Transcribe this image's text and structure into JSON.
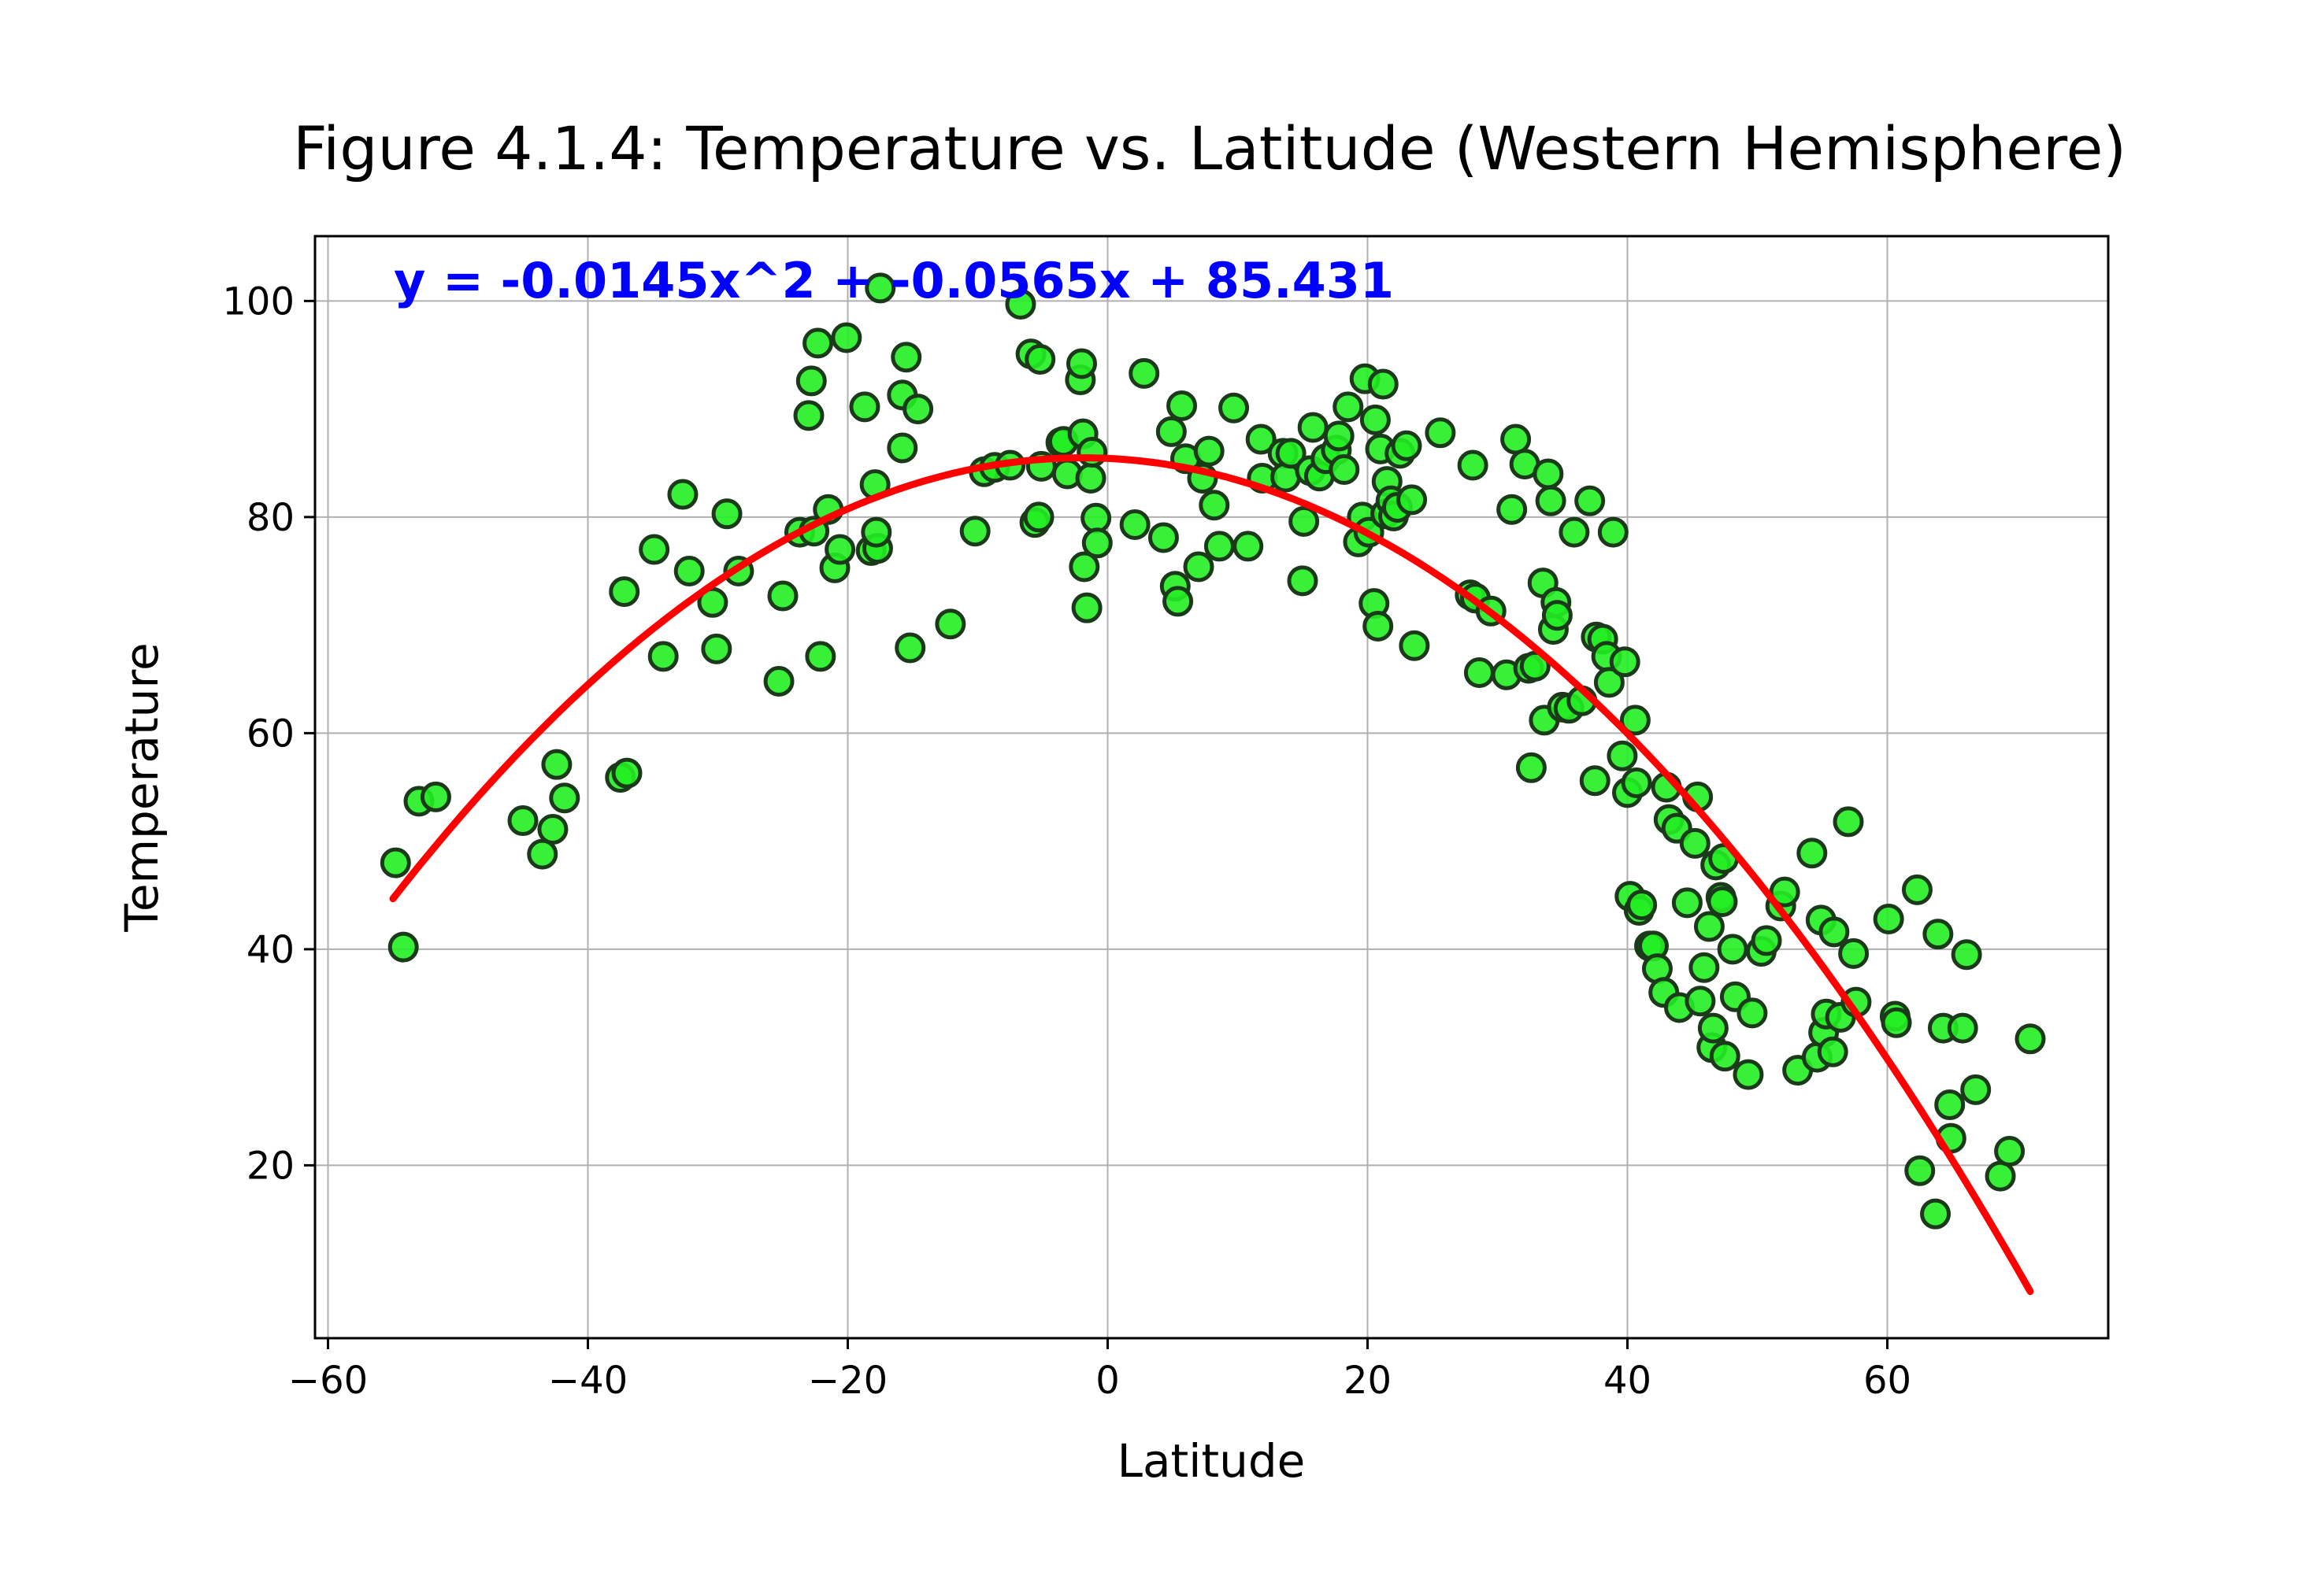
{
  "chart_data": {
    "type": "scatter",
    "title": "Figure 4.1.4: Temperature vs. Latitude (Western Hemisphere)",
    "xlabel": "Latitude",
    "ylabel": "Temperature",
    "xlim": [
      -61,
      77
    ],
    "ylim": [
      4,
      106
    ],
    "xticks": [
      -60,
      -40,
      -20,
      0,
      20,
      40,
      60
    ],
    "yticks": [
      20,
      40,
      60,
      80,
      100
    ],
    "grid": true,
    "marker_fill": "#22ee22",
    "marker_edge": "#1a3a1a",
    "fit_color": "#ff0000",
    "equation_color": "#0000ff",
    "annotation": "y = -0.0145x^2 + -0.0565x + 85.431",
    "fit": {
      "a": -0.0145,
      "b": -0.0565,
      "c": 85.431,
      "x_range": [
        -55,
        71
      ]
    },
    "points": [
      [
        -54.8,
        48
      ],
      [
        -54.2,
        40.2
      ],
      [
        -53.0,
        53.7
      ],
      [
        -51.7,
        54.1
      ],
      [
        -45.0,
        51.9
      ],
      [
        -43.5,
        48.8
      ],
      [
        -42.7,
        51.1
      ],
      [
        -42.4,
        57.1
      ],
      [
        -41.8,
        54
      ],
      [
        -37.5,
        55.9
      ],
      [
        -37.0,
        56.3
      ],
      [
        -37.2,
        73.1
      ],
      [
        -34.9,
        77
      ],
      [
        -34.2,
        67.1
      ],
      [
        -32.7,
        82.1
      ],
      [
        -32.2,
        75
      ],
      [
        -30.4,
        72.1
      ],
      [
        -30.1,
        67.8
      ],
      [
        -29.3,
        80.3
      ],
      [
        -28.4,
        75
      ],
      [
        -25.3,
        64.8
      ],
      [
        -25.0,
        72.7
      ],
      [
        -23.7,
        78.6
      ],
      [
        -23.0,
        89.4
      ],
      [
        -22.8,
        92.6
      ],
      [
        -22.6,
        78.7
      ],
      [
        -22.3,
        96.1
      ],
      [
        -22.1,
        67.1
      ],
      [
        -21.5,
        80.7
      ],
      [
        -21.0,
        75.3
      ],
      [
        -20.6,
        77
      ],
      [
        -20.1,
        96.6
      ],
      [
        -18.7,
        90.2
      ],
      [
        -18.2,
        76.9
      ],
      [
        -17.9,
        83
      ],
      [
        -17.7,
        77.1
      ],
      [
        -17.8,
        78.6
      ],
      [
        -17.5,
        101.2
      ],
      [
        -15.8,
        86.4
      ],
      [
        -15.8,
        91.3
      ],
      [
        -15.5,
        94.8
      ],
      [
        -15.2,
        67.9
      ],
      [
        -14.6,
        90
      ],
      [
        -12.1,
        70.1
      ],
      [
        -10.2,
        78.7
      ],
      [
        -9.5,
        84.2
      ],
      [
        -8.7,
        84.6
      ],
      [
        -7.5,
        84.8
      ],
      [
        -6.7,
        99.7
      ],
      [
        -5.9,
        95.1
      ],
      [
        -5.6,
        79.5
      ],
      [
        -5.3,
        80
      ],
      [
        -5.2,
        94.6
      ],
      [
        -5.1,
        84.7
      ],
      [
        -3.6,
        86.9
      ],
      [
        -3.4,
        87
      ],
      [
        -3.1,
        84
      ],
      [
        -2.1,
        92.7
      ],
      [
        -1.9,
        87.7
      ],
      [
        -2.0,
        94.2
      ],
      [
        -1.8,
        75.4
      ],
      [
        -1.6,
        71.6
      ],
      [
        -1.3,
        83.6
      ],
      [
        -1.2,
        86
      ],
      [
        -0.9,
        79.9
      ],
      [
        -0.8,
        77.6
      ],
      [
        2.1,
        79.3
      ],
      [
        2.8,
        93.3
      ],
      [
        4.3,
        78.1
      ],
      [
        4.9,
        87.9
      ],
      [
        5.2,
        73.6
      ],
      [
        5.4,
        72.2
      ],
      [
        5.7,
        90.3
      ],
      [
        6.0,
        85.4
      ],
      [
        7.0,
        75.4
      ],
      [
        7.3,
        83.6
      ],
      [
        7.8,
        86.1
      ],
      [
        8.2,
        81.1
      ],
      [
        8.6,
        77.3
      ],
      [
        9.7,
        90.1
      ],
      [
        10.8,
        77.3
      ],
      [
        11.8,
        87.2
      ],
      [
        11.9,
        83.6
      ],
      [
        13.5,
        85.9
      ],
      [
        13.7,
        83.7
      ],
      [
        14.1,
        85.9
      ],
      [
        15.0,
        74.1
      ],
      [
        15.1,
        79.6
      ],
      [
        15.6,
        84.3
      ],
      [
        15.8,
        88.3
      ],
      [
        16.3,
        83.8
      ],
      [
        16.8,
        85.4
      ],
      [
        17.6,
        86.2
      ],
      [
        17.8,
        87.5
      ],
      [
        18.2,
        84.4
      ],
      [
        18.5,
        90.2
      ],
      [
        19.3,
        77.7
      ],
      [
        19.6,
        80
      ],
      [
        19.8,
        92.8
      ],
      [
        20.1,
        78.6
      ],
      [
        20.5,
        72
      ],
      [
        20.8,
        69.9
      ],
      [
        20.6,
        89
      ],
      [
        21.0,
        86.3
      ],
      [
        21.2,
        92.3
      ],
      [
        21.4,
        80.3
      ],
      [
        21.5,
        83.3
      ],
      [
        21.8,
        81.5
      ],
      [
        22.0,
        80.1
      ],
      [
        22.3,
        80.9
      ],
      [
        22.5,
        85.9
      ],
      [
        23.0,
        86.6
      ],
      [
        23.4,
        81.6
      ],
      [
        23.6,
        68.1
      ],
      [
        25.6,
        87.8
      ],
      [
        27.9,
        72.8
      ],
      [
        28.1,
        84.8
      ],
      [
        28.3,
        72.5
      ],
      [
        28.6,
        65.6
      ],
      [
        29.5,
        71.3
      ],
      [
        30.7,
        65.4
      ],
      [
        31.1,
        80.7
      ],
      [
        31.4,
        87.2
      ],
      [
        32.1,
        84.9
      ],
      [
        32.4,
        66
      ],
      [
        32.6,
        56.8
      ],
      [
        32.9,
        66.2
      ],
      [
        33.5,
        73.9
      ],
      [
        33.6,
        61.2
      ],
      [
        33.9,
        84
      ],
      [
        34.1,
        81.5
      ],
      [
        34.3,
        69.6
      ],
      [
        34.5,
        72.1
      ],
      [
        34.6,
        70.9
      ],
      [
        35.0,
        62.4
      ],
      [
        35.5,
        62.3
      ],
      [
        35.9,
        78.6
      ],
      [
        36.5,
        63
      ],
      [
        37.1,
        81.5
      ],
      [
        37.5,
        55.6
      ],
      [
        37.6,
        68.9
      ],
      [
        38.1,
        68.7
      ],
      [
        38.4,
        67.1
      ],
      [
        38.6,
        64.7
      ],
      [
        38.9,
        78.6
      ],
      [
        39.6,
        57.9
      ],
      [
        39.8,
        66.6
      ],
      [
        40.0,
        54.5
      ],
      [
        40.2,
        44.9
      ],
      [
        40.6,
        61.2
      ],
      [
        40.7,
        55.4
      ],
      [
        40.9,
        43.6
      ],
      [
        41.1,
        44.1
      ],
      [
        41.7,
        40.3
      ],
      [
        42.0,
        40.3
      ],
      [
        42.3,
        38.2
      ],
      [
        42.8,
        36
      ],
      [
        43.0,
        55
      ],
      [
        43.2,
        52
      ],
      [
        43.8,
        51.2
      ],
      [
        44.0,
        34.6
      ],
      [
        44.6,
        44.3
      ],
      [
        45.2,
        49.8
      ],
      [
        45.4,
        54.1
      ],
      [
        45.6,
        35.2
      ],
      [
        45.9,
        38.3
      ],
      [
        46.3,
        42.1
      ],
      [
        46.5,
        30.9
      ],
      [
        46.6,
        32.7
      ],
      [
        46.8,
        47.8
      ],
      [
        47.2,
        44.8
      ],
      [
        47.3,
        44.4
      ],
      [
        47.4,
        48.4
      ],
      [
        47.5,
        30.1
      ],
      [
        48.1,
        40
      ],
      [
        48.3,
        35.6
      ],
      [
        49.3,
        28.4
      ],
      [
        49.6,
        34.1
      ],
      [
        50.3,
        39.8
      ],
      [
        50.7,
        40.8
      ],
      [
        51.8,
        44
      ],
      [
        52.1,
        45.3
      ],
      [
        53.1,
        28.8
      ],
      [
        54.2,
        48.9
      ],
      [
        54.6,
        30
      ],
      [
        54.9,
        42.7
      ],
      [
        55.1,
        32.3
      ],
      [
        55.3,
        34
      ],
      [
        55.8,
        30.5
      ],
      [
        55.9,
        41.6
      ],
      [
        56.4,
        33.7
      ],
      [
        57.0,
        51.8
      ],
      [
        57.4,
        39.6
      ],
      [
        57.6,
        35.1
      ],
      [
        60.1,
        42.8
      ],
      [
        60.6,
        33.8
      ],
      [
        60.7,
        33.2
      ],
      [
        62.3,
        45.5
      ],
      [
        62.5,
        19.5
      ],
      [
        63.7,
        15.5
      ],
      [
        63.9,
        41.4
      ],
      [
        64.3,
        32.7
      ],
      [
        64.8,
        25.6
      ],
      [
        64.9,
        22.5
      ],
      [
        65.8,
        32.7
      ],
      [
        66.1,
        39.5
      ],
      [
        66.8,
        27
      ],
      [
        68.7,
        19
      ],
      [
        69.4,
        21.3
      ],
      [
        71.0,
        31.7
      ]
    ]
  }
}
